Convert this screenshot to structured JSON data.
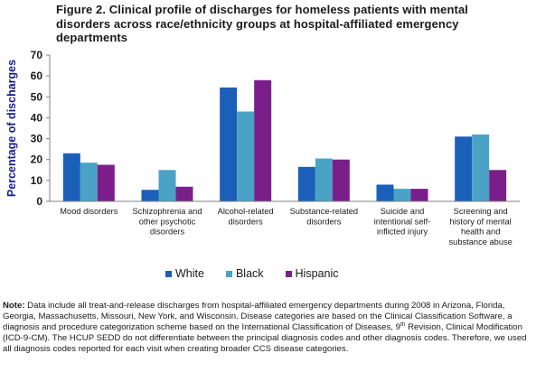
{
  "figure": {
    "title": "Figure 2. Clinical profile of discharges for homeless patients with mental disorders across race/ethnicity groups at hospital-affiliated emergency departments"
  },
  "chart_data": {
    "type": "bar",
    "ylabel": "Percentage of discharges",
    "xlabel": "",
    "ylim": [
      0,
      70
    ],
    "yticks": [
      0,
      10,
      20,
      30,
      40,
      50,
      60,
      70
    ],
    "grid": false,
    "legend_position": "bottom",
    "categories": [
      [
        "Mood disorders"
      ],
      [
        "Schizophrenia and",
        "other psychotic",
        "disorders"
      ],
      [
        "Alcohol-related",
        "disorders"
      ],
      [
        "Substance-related",
        "disorders"
      ],
      [
        "Suicide and",
        "intentional self-",
        "inflicted injury"
      ],
      [
        "Screening and",
        "history of mental",
        "health and",
        "substance abuse"
      ]
    ],
    "series": [
      {
        "name": "White",
        "color": "#1c5fb8",
        "values": [
          23,
          5.5,
          54.5,
          16.5,
          8,
          31
        ]
      },
      {
        "name": "Black",
        "color": "#4aa3c7",
        "values": [
          18.5,
          15,
          43,
          20.5,
          6,
          32
        ]
      },
      {
        "name": "Hispanic",
        "color": "#7a1f8a",
        "values": [
          17.5,
          7,
          58,
          20,
          6,
          15
        ]
      }
    ]
  },
  "note": {
    "label": "Note:",
    "text_part1": " Data include all treat-and-release discharges from hospital-affiliated emergency departments during 2008 in Arizona, Florida, Georgia, Massachusetts, Missouri, New York, and Wisconsin. Disease categories are based on the Clinical Classification Software, a diagnosis and procedure categorization scheme based on the International Classification of Diseases, 9",
    "superscript": "th",
    "text_part2": " Revision, Clinical Modification (ICD-9-CM). The HCUP SEDD do not differentiate between the principal diagnosis codes and other diagnosis codes. Therefore, we used all diagnosis codes reported for each visit when creating broader CCS disease categories."
  }
}
